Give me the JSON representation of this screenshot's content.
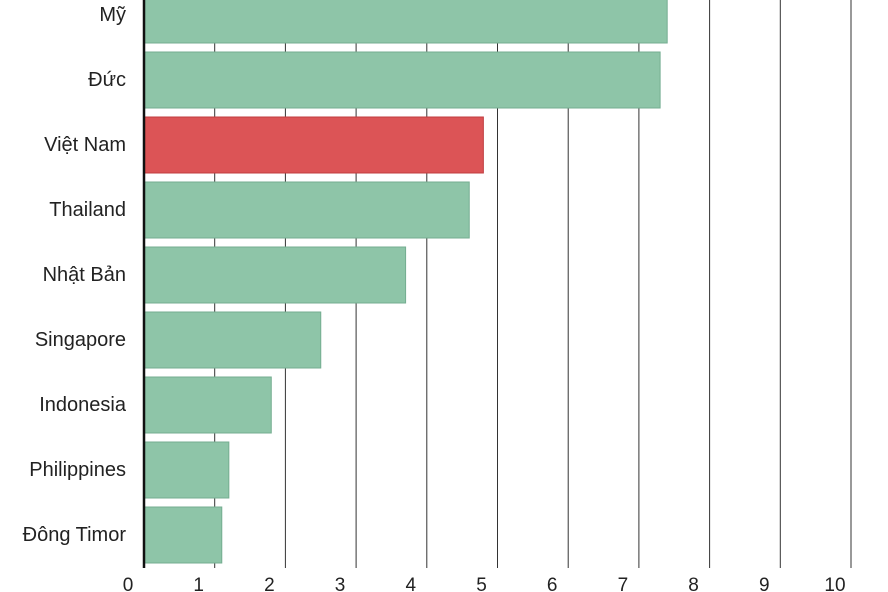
{
  "chart_data": {
    "type": "bar",
    "orientation": "horizontal",
    "categories": [
      "Mỹ",
      "Đức",
      "Việt Nam",
      "Thailand",
      "Nhật Bản",
      "Singapore",
      "Indonesia",
      "Philippines",
      "Đông Timor"
    ],
    "values": [
      7.4,
      7.3,
      4.8,
      4.6,
      3.7,
      2.5,
      1.8,
      1.2,
      1.1
    ],
    "highlight": "Việt Nam",
    "xlim": [
      0,
      10
    ],
    "xticks": [
      "0",
      "1",
      "2",
      "3",
      "4",
      "5",
      "6",
      "7",
      "8",
      "9",
      "10"
    ],
    "grid": "vertical",
    "title": "",
    "xlabel": "",
    "ylabel": ""
  },
  "colors": {
    "bar": "#8ec5a8",
    "bar_stroke": "#74ad90",
    "highlight": "#dc5456",
    "highlight_stroke": "#c03c3f",
    "grid": "#333333",
    "axis": "#111111",
    "text": "#222222"
  }
}
